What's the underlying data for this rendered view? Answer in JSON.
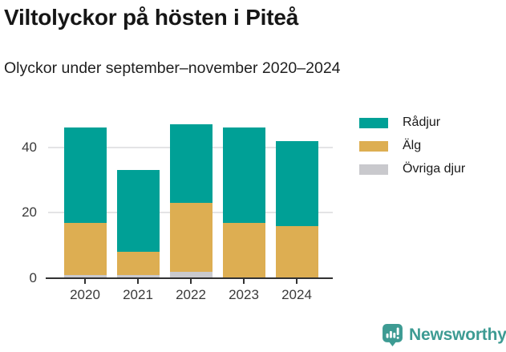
{
  "header": {
    "title": "Viltolyckor på hösten i Piteå",
    "subtitle": "Olyckor under september–november 2020–2024"
  },
  "chart_data": {
    "type": "bar",
    "stacked": true,
    "title": "Viltolyckor på hösten i Piteå",
    "subtitle": "Olyckor under september–november 2020–2024",
    "categories": [
      "2020",
      "2021",
      "2022",
      "2023",
      "2024"
    ],
    "series": [
      {
        "name": "Rådjur",
        "color": "#00a096",
        "values": [
          29,
          25,
          24,
          29,
          26
        ]
      },
      {
        "name": "Älg",
        "color": "#ddae52",
        "values": [
          16,
          7,
          21,
          17,
          16
        ]
      },
      {
        "name": "Övriga djur",
        "color": "#c9c9cd",
        "values": [
          1,
          1,
          2,
          0,
          0
        ]
      }
    ],
    "totals": [
      46,
      33,
      47,
      46,
      42
    ],
    "yticks": [
      0,
      20,
      40
    ],
    "ylim": [
      0,
      50
    ],
    "xlabel": "",
    "ylabel": "",
    "grid": true,
    "legend_position": "right"
  },
  "colors": {
    "accent_teal": "#00a096",
    "accent_gold": "#ddae52",
    "accent_gray": "#c9c9cd",
    "axis": "#323232",
    "gridline": "#e4e4e6",
    "brand_teal": "#3d9b93"
  },
  "footer": {
    "brand": "Newsworthy"
  }
}
